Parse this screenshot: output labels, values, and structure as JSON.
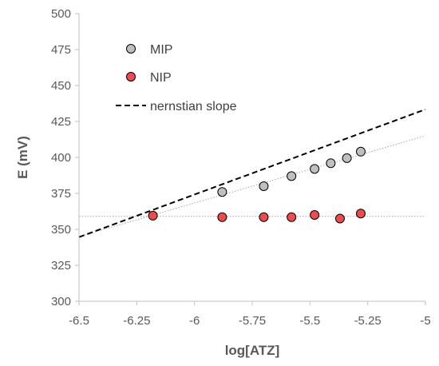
{
  "chart_data": {
    "type": "scatter",
    "title": "",
    "xlabel": "log[ATZ]",
    "ylabel": "E (mV)",
    "xlim": [
      -6.5,
      -5
    ],
    "ylim": [
      300,
      500
    ],
    "xticks": [
      -6.5,
      -6.25,
      -6,
      -5.75,
      -5.5,
      -5.25,
      -5
    ],
    "xtick_labels": [
      "-6.5",
      "-6.25",
      "-6",
      "-5.75",
      "-5.5",
      "-5.25",
      "-5"
    ],
    "yticks": [
      300,
      325,
      350,
      375,
      400,
      425,
      450,
      475,
      500
    ],
    "ytick_labels": [
      "300",
      "325",
      "350",
      "375",
      "400",
      "425",
      "450",
      "475",
      "500"
    ],
    "grid": false,
    "legend_position": "top-left",
    "series": [
      {
        "name": "MIP",
        "kind": "points",
        "color": "#bfbfbf",
        "x": [
          -5.88,
          -5.7,
          -5.58,
          -5.48,
          -5.41,
          -5.34,
          -5.28
        ],
        "y": [
          376,
          380,
          387,
          392,
          396,
          399.5,
          404
        ]
      },
      {
        "name": "NIP",
        "kind": "points",
        "color": "#f04a4a",
        "x": [
          -6.18,
          -5.88,
          -5.7,
          -5.58,
          -5.48,
          -5.37,
          -5.28
        ],
        "y": [
          359.5,
          358.5,
          358.5,
          358.5,
          360,
          357.5,
          361
        ]
      },
      {
        "name": "nernstian slope",
        "kind": "line",
        "color": "#000000",
        "x": [
          -6.5,
          -5
        ],
        "y": [
          344.6,
          433.4
        ]
      }
    ],
    "trendlines": [
      {
        "series": "MIP",
        "x": [
          -6.5,
          -5
        ],
        "y": [
          345,
          415
        ],
        "color": "#a6a6a6"
      },
      {
        "series": "NIP",
        "x": [
          -6.5,
          -5
        ],
        "y": [
          359,
          359
        ],
        "color": "#a6a6a6"
      }
    ]
  }
}
